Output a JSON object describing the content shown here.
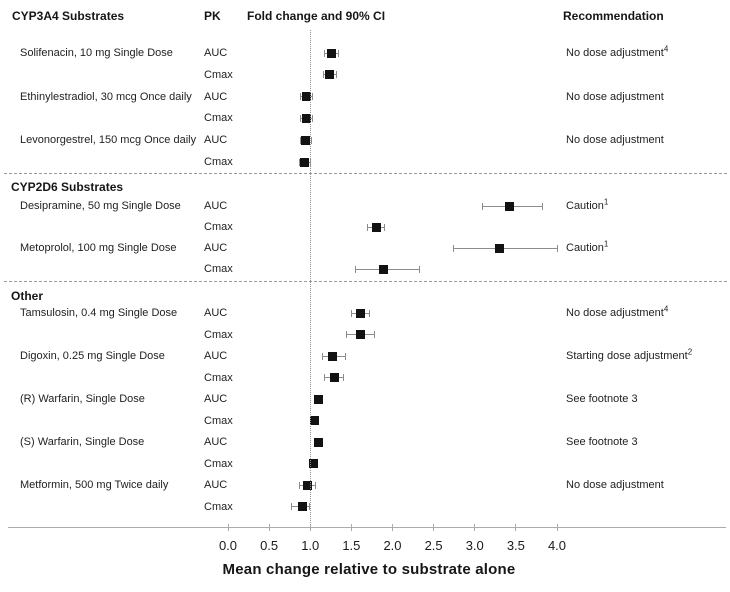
{
  "header": {
    "col_pk": "PK",
    "col_fold_change": "Fold change and 90% CI",
    "col_recommendation": "Recommendation"
  },
  "chart_data": {
    "type": "forest",
    "xlabel": "Mean change relative to substrate alone",
    "x_ticks": [
      "0.0",
      "0.5",
      "1.0",
      "1.5",
      "2.0",
      "2.5",
      "3.0",
      "3.5",
      "4.0"
    ],
    "xlim": [
      0,
      4.2
    ],
    "reference_line_x": 1.0,
    "ci_level": "90% CI",
    "grid": "off",
    "sections": [
      {
        "heading": "CYP3A4 Substrates",
        "heading_position": "header_row",
        "rows": [
          {
            "drug": "Solifenacin, 10 mg Single Dose",
            "pk": "AUC",
            "value": 1.26,
            "ci_low": 1.17,
            "ci_high": 1.35,
            "recommendation": "No dose adjustment",
            "recommendation_sup": "4"
          },
          {
            "drug": "",
            "pk": "Cmax",
            "value": 1.23,
            "ci_low": 1.16,
            "ci_high": 1.32
          },
          {
            "drug": "Ethinylestradiol, 30 mcg Once daily",
            "pk": "AUC",
            "value": 0.95,
            "ci_low": 0.87,
            "ci_high": 1.03,
            "recommendation": "No dose adjustment"
          },
          {
            "drug": "",
            "pk": "Cmax",
            "value": 0.95,
            "ci_low": 0.87,
            "ci_high": 1.03
          },
          {
            "drug": "Levonorgestrel, 150 mcg Once daily",
            "pk": "AUC",
            "value": 0.94,
            "ci_low": 0.87,
            "ci_high": 1.02,
            "recommendation": "No dose adjustment"
          },
          {
            "drug": "",
            "pk": "Cmax",
            "value": 0.93,
            "ci_low": 0.86,
            "ci_high": 1.01
          }
        ]
      },
      {
        "heading": "CYP2D6 Substrates",
        "rows": [
          {
            "drug": "Desipramine, 50 mg Single Dose",
            "pk": "AUC",
            "value": 3.42,
            "ci_low": 3.09,
            "ci_high": 3.83,
            "recommendation": "Caution",
            "recommendation_sup": "1"
          },
          {
            "drug": "",
            "pk": "Cmax",
            "value": 1.8,
            "ci_low": 1.69,
            "ci_high": 1.91
          },
          {
            "drug": "Metoprolol, 100 mg Single Dose",
            "pk": "AUC",
            "value": 3.3,
            "ci_low": 2.73,
            "ci_high": 4.01,
            "recommendation": "Caution",
            "recommendation_sup": "1"
          },
          {
            "drug": "",
            "pk": "Cmax",
            "value": 1.89,
            "ci_low": 1.54,
            "ci_high": 2.34
          }
        ]
      },
      {
        "heading": "Other",
        "rows": [
          {
            "drug": "Tamsulosin, 0.4 mg Single Dose",
            "pk": "AUC",
            "value": 1.61,
            "ci_low": 1.5,
            "ci_high": 1.73,
            "recommendation": "No dose adjustment",
            "recommendation_sup": "4"
          },
          {
            "drug": "",
            "pk": "Cmax",
            "value": 1.61,
            "ci_low": 1.44,
            "ci_high": 1.79
          },
          {
            "drug": "Digoxin, 0.25 mg Single Dose",
            "pk": "AUC",
            "value": 1.27,
            "ci_low": 1.14,
            "ci_high": 1.44,
            "recommendation": "Starting dose adjustment",
            "recommendation_sup": "2"
          },
          {
            "drug": "",
            "pk": "Cmax",
            "value": 1.29,
            "ci_low": 1.17,
            "ci_high": 1.41
          },
          {
            "drug": "(R) Warfarin, Single Dose",
            "pk": "AUC",
            "value": 1.1,
            "ci_low": 1.06,
            "ci_high": 1.14,
            "recommendation": "See footnote 3"
          },
          {
            "drug": "",
            "pk": "Cmax",
            "value": 1.05,
            "ci_low": 1.0,
            "ci_high": 1.1
          },
          {
            "drug": "(S) Warfarin, Single Dose",
            "pk": "AUC",
            "value": 1.1,
            "ci_low": 1.07,
            "ci_high": 1.13,
            "recommendation": "See footnote 3"
          },
          {
            "drug": "",
            "pk": "Cmax",
            "value": 1.04,
            "ci_low": 0.99,
            "ci_high": 1.09
          },
          {
            "drug": "Metformin, 500 mg Twice daily",
            "pk": "AUC",
            "value": 0.97,
            "ci_low": 0.86,
            "ci_high": 1.07,
            "recommendation": "No dose adjustment"
          },
          {
            "drug": "",
            "pk": "Cmax",
            "value": 0.9,
            "ci_low": 0.77,
            "ci_high": 1.0
          }
        ]
      }
    ]
  },
  "colors": {
    "marker": "#121212",
    "whisker": "#8c8c8c",
    "axis": "#ababab",
    "separator": "#9a9a9a",
    "reference_line": "#8f8f8f",
    "text": "#1b1b1b"
  }
}
